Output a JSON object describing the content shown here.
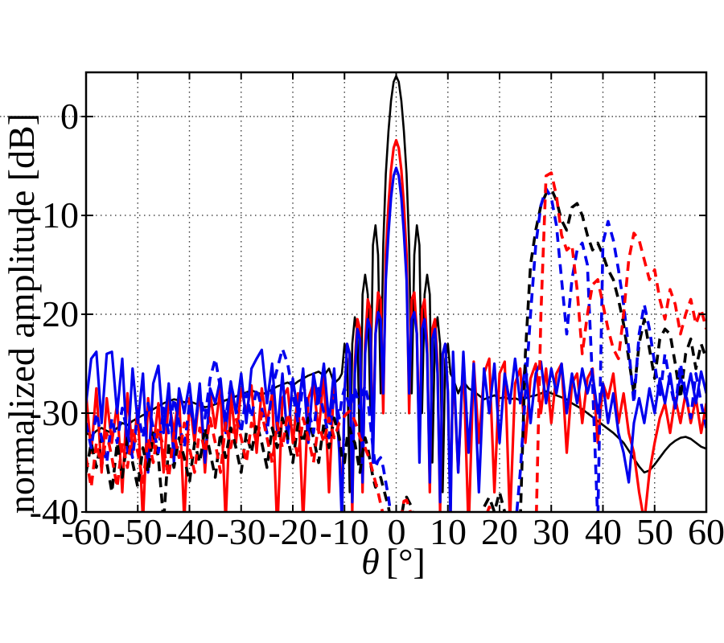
{
  "figure": {
    "kind": "matlab-style radiation pattern figure",
    "background": "#ffffff",
    "frame_color": "#000000",
    "grid_color": "#3a3a3a"
  },
  "chart_data": {
    "type": "line",
    "title": "",
    "xlabel": "θ [°]",
    "xlabel_theta": "θ",
    "xlabel_unit": "[°]",
    "ylabel": "normalized amplitude [dB]",
    "xlim": [
      -60,
      60
    ],
    "ylim": [
      -40,
      4.47
    ],
    "grid": "dotted",
    "legend_position": "none",
    "xticks": [
      -60,
      -50,
      -40,
      -30,
      -20,
      -10,
      0,
      10,
      20,
      30,
      40,
      50,
      60
    ],
    "yticks": [
      0,
      -10,
      -20,
      -30,
      -40
    ],
    "xtick_labels": [
      "-60",
      "-50",
      "-40",
      "-30",
      "-20",
      "-10",
      "0",
      "10",
      "20",
      "30",
      "40",
      "50",
      "60"
    ],
    "ytick_labels": [
      "0",
      "-10",
      "-20",
      "-30",
      "-40"
    ],
    "x": [
      -60,
      -59,
      -58,
      -57,
      -56,
      -55,
      -54,
      -53,
      -52,
      -51,
      -50,
      -49,
      -48,
      -47,
      -46,
      -45,
      -44,
      -43,
      -42,
      -41,
      -40,
      -39,
      -38,
      -37,
      -36,
      -35,
      -34,
      -33,
      -32,
      -31,
      -30,
      -29,
      -28,
      -27,
      -26,
      -25,
      -24,
      -23,
      -22,
      -21,
      -20,
      -19,
      -18,
      -17,
      -16,
      -15,
      -14,
      -13,
      -12,
      -11,
      -10.5,
      -10,
      -9.5,
      -9,
      -8.5,
      -8,
      -7.5,
      -7,
      -6.5,
      -6,
      -5.5,
      -5,
      -4.5,
      -4,
      -3.5,
      -3,
      -2.5,
      -2,
      -1.5,
      -1,
      -0.5,
      0,
      0.5,
      1,
      1.5,
      2,
      2.5,
      3,
      3.5,
      4,
      4.5,
      5,
      5.5,
      6,
      6.5,
      7,
      7.5,
      8,
      8.5,
      9,
      9.5,
      10,
      10.5,
      11,
      12,
      13,
      14,
      15,
      16,
      17,
      18,
      19,
      20,
      21,
      22,
      23,
      24,
      25,
      26,
      27,
      28,
      29,
      30,
      31,
      32,
      33,
      34,
      35,
      36,
      37,
      38,
      39,
      40,
      41,
      42,
      43,
      44,
      45,
      46,
      47,
      48,
      49,
      50,
      51,
      52,
      53,
      54,
      55,
      56,
      57,
      58,
      59,
      60
    ],
    "series": [
      {
        "name": "solid-black",
        "color": "#000000",
        "style": "solid",
        "width": 2.6,
        "values": [
          -32,
          -32.3,
          -31.8,
          -31.5,
          -31.8,
          -32,
          -31.5,
          -31,
          -31.2,
          -30.8,
          -30.5,
          -30.2,
          -30,
          -29.6,
          -29.3,
          -29,
          -28.8,
          -28.6,
          -28.7,
          -28.9,
          -28.8,
          -29,
          -29.2,
          -29.4,
          -29.3,
          -29.1,
          -28.9,
          -28.7,
          -28.5,
          -28.3,
          -28.1,
          -27.9,
          -27.7,
          -27.9,
          -28.1,
          -27.9,
          -27.6,
          -27.3,
          -27.1,
          -26.9,
          -27.2,
          -26.8,
          -26.5,
          -26.2,
          -26,
          -25.8,
          -26.2,
          -25.5,
          -27,
          -26.5,
          -26,
          -23,
          -24.5,
          -38,
          -23,
          -20.3,
          -22,
          -35,
          -18,
          -16,
          -18,
          -30,
          -13,
          -11,
          -14,
          -28,
          -13,
          -5.8,
          -1.5,
          1.6,
          3.5,
          4.1,
          3.5,
          1.6,
          -1.5,
          -5.8,
          -13,
          -28,
          -14,
          -11,
          -13,
          -30,
          -18,
          -16,
          -18,
          -35,
          -22,
          -20.3,
          -23,
          -38,
          -24.5,
          -23,
          -26,
          -26.5,
          -28,
          -26.8,
          -27.5,
          -27.8,
          -28.2,
          -28.6,
          -28.4,
          -28.2,
          -28.5,
          -28.4,
          -28.6,
          -28.5,
          -28.7,
          -28.5,
          -28.3,
          -28.2,
          -28,
          -27.8,
          -28,
          -28.2,
          -28.4,
          -28.6,
          -29,
          -29.3,
          -29.6,
          -30,
          -30.4,
          -30.8,
          -31.2,
          -31.6,
          -32,
          -32.5,
          -33,
          -33.8,
          -34.6,
          -35.4,
          -36,
          -35.8,
          -35.2,
          -34.5,
          -33.8,
          -33.2,
          -32.8,
          -32.5,
          -32.4,
          -32.6,
          -33,
          -33.4,
          -33.6
        ]
      },
      {
        "name": "solid-red",
        "color": "#ff0000",
        "style": "solid",
        "width": 3.2,
        "values": [
          -28,
          -34,
          -27.5,
          -36,
          -28.5,
          -33,
          -29,
          -38,
          -28,
          -34,
          -29.5,
          -41,
          -28.5,
          -33.5,
          -29,
          -36,
          -28.5,
          -32,
          -28,
          -41,
          -28.5,
          -33,
          -27.5,
          -36,
          -28,
          -31.5,
          -27.5,
          -41,
          -28,
          -33,
          -27.5,
          -30,
          -27.2,
          -34,
          -27.5,
          -31,
          -28,
          -42,
          -28.5,
          -27.5,
          -33,
          -28,
          -41,
          -28.5,
          -27,
          -32,
          -26,
          -38,
          -26.5,
          -33,
          -40,
          -28,
          -23,
          -24,
          -40,
          -25,
          -20.5,
          -21.5,
          -38,
          -23,
          -18.5,
          -19.5,
          -34,
          -22,
          -17.8,
          -18.5,
          -30,
          -14,
          -9,
          -5.4,
          -3.2,
          -2.4,
          -3.2,
          -5.4,
          -9,
          -14,
          -30,
          -18.5,
          -17.8,
          -22,
          -34,
          -19.5,
          -18.5,
          -23,
          -38,
          -21.5,
          -20.5,
          -25,
          -40,
          -24,
          -23,
          -28,
          -40,
          -24.8,
          -36,
          -24.5,
          -42,
          -24.8,
          -33,
          -26,
          -24.5,
          -38,
          -26,
          -24.8,
          -41,
          -27,
          -25.5,
          -33,
          -26.5,
          -25,
          -30,
          -25.5,
          -31,
          -26,
          -25,
          -34,
          -27,
          -26,
          -31,
          -26.5,
          -25.5,
          -33,
          -27,
          -28.5,
          -26,
          -31,
          -28,
          -32,
          -34,
          -38,
          -41,
          -36,
          -33,
          -30.5,
          -29,
          -32,
          -28.5,
          -31,
          -28,
          -31,
          -28.5,
          -32,
          -29
        ]
      },
      {
        "name": "solid-blue",
        "color": "#0000ee",
        "style": "solid",
        "width": 3.2,
        "values": [
          -29,
          -24.5,
          -23.8,
          -31,
          -24,
          -23.8,
          -30,
          -24.5,
          -34,
          -25.5,
          -31,
          -26,
          -36,
          -27,
          -25.2,
          -32,
          -27,
          -35,
          -27.5,
          -30,
          -27,
          -32,
          -27,
          -35,
          -27.5,
          -29,
          -26.5,
          -32,
          -26.8,
          -30,
          -26,
          -31,
          -25.5,
          -24.5,
          -23.6,
          -29,
          -25,
          -32,
          -26,
          -33,
          -26.5,
          -30,
          -25.5,
          -33,
          -26,
          -29,
          -25,
          -31,
          -25.5,
          -34,
          -41,
          -28,
          -23,
          -24,
          -39,
          -26,
          -21.5,
          -22.5,
          -37,
          -24,
          -20.5,
          -21.5,
          -35,
          -22,
          -19.8,
          -20.5,
          -28,
          -16.5,
          -11.8,
          -8.2,
          -6,
          -5.2,
          -6,
          -8.2,
          -11.8,
          -16.5,
          -28,
          -20.5,
          -19.8,
          -22,
          -35,
          -21.5,
          -20.5,
          -24,
          -37,
          -22.5,
          -21.5,
          -26,
          -39,
          -24,
          -23,
          -28,
          -41,
          -23.8,
          -36,
          -23.8,
          -34,
          -25,
          -38,
          -25.5,
          -30,
          -25,
          -33,
          -26,
          -29,
          -24.5,
          -29,
          -25,
          -31,
          -26,
          -24.8,
          -29,
          -25.5,
          -28,
          -25,
          -30,
          -26,
          -29,
          -25.5,
          -28,
          -26,
          -30,
          -27,
          -31,
          -28,
          -32,
          -34,
          -37,
          -31,
          -28.5,
          -31,
          -27.5,
          -30,
          -26.5,
          -29,
          -26,
          -29.5,
          -26.2,
          -28.5,
          -26,
          -29,
          -25.8,
          -28
        ]
      },
      {
        "name": "dashed-black",
        "color": "#000000",
        "style": "dashed",
        "width": 3.6,
        "values": [
          -36,
          -33,
          -35.5,
          -32.5,
          -35,
          -38,
          -33,
          -36.5,
          -32.5,
          -35,
          -37.5,
          -33.5,
          -36,
          -32,
          -34.5,
          -41,
          -33,
          -35.5,
          -32.5,
          -34.5,
          -37,
          -33,
          -35,
          -31.5,
          -34,
          -36.5,
          -32,
          -34.5,
          -31.5,
          -33.5,
          -36,
          -32,
          -34,
          -31,
          -33,
          -35.5,
          -31.5,
          -33.5,
          -30.5,
          -32.5,
          -35,
          -31,
          -33,
          -30.5,
          -32.5,
          -35,
          -31,
          -33.5,
          -30.5,
          -32.5,
          -34.5,
          -35,
          -32.5,
          -31.5,
          -32.5,
          -33,
          -34.5,
          -36,
          -34,
          -32.5,
          -33.5,
          -35,
          -36.5,
          -37.5,
          -36.8,
          -36.5,
          -37.5,
          -38.5,
          -39.5,
          -41,
          -42,
          -43,
          -42,
          -40.5,
          -39,
          -38.5,
          -39,
          -39.5,
          -41,
          -42,
          -43,
          -44,
          -43,
          -41.5,
          -42.5,
          -43.5,
          -44.5,
          -45,
          -44,
          -42,
          -43,
          -44,
          -42.5,
          -41,
          -43,
          -45,
          -42,
          -44,
          -41,
          -39.5,
          -38.5,
          -40,
          -38,
          -40,
          -43,
          -45,
          -41,
          -24,
          -15,
          -11.5,
          -9,
          -7.8,
          -7.3,
          -8.5,
          -10.5,
          -11.5,
          -9.2,
          -8.8,
          -10,
          -12,
          -13.5,
          -12.8,
          -14,
          -15.5,
          -16.5,
          -18.5,
          -21,
          -24.5,
          -28,
          -23,
          -20.5,
          -23.5,
          -26.5,
          -22.5,
          -21.5,
          -22,
          -25,
          -28.5,
          -24,
          -22.5,
          -25.5,
          -23,
          -24.5
        ]
      },
      {
        "name": "dashed-blue",
        "color": "#0000ee",
        "style": "dashed",
        "width": 3.6,
        "values": [
          -31,
          -33.5,
          -30,
          -32.5,
          -35,
          -30.5,
          -33,
          -29.5,
          -32,
          -34.5,
          -30,
          -32.5,
          -29,
          -31.5,
          -34,
          -29.5,
          -32,
          -28.5,
          -31,
          -33.5,
          -29,
          -31.5,
          -28,
          -30.5,
          -26.5,
          -24.5,
          -27.5,
          -30.5,
          -27,
          -29.5,
          -32,
          -28,
          -30.5,
          -27.5,
          -29.5,
          -32,
          -27.5,
          -25.5,
          -23.5,
          -25,
          -28,
          -31,
          -27,
          -29.5,
          -32,
          -27.5,
          -30,
          -32.5,
          -28,
          -30.5,
          -28.5,
          -27.5,
          -28.5,
          -29.5,
          -28.5,
          -27.5,
          -28.5,
          -29.5,
          -28,
          -27.2,
          -28.5,
          -31,
          -33.5,
          -35.5,
          -34.8,
          -34.5,
          -35.5,
          -37,
          -38.5,
          -40.5,
          -42,
          -43.5,
          -42.5,
          -42,
          -43,
          -44,
          -43.5,
          -43,
          -44,
          -45,
          -44,
          -43.5,
          -44.5,
          -45,
          -44.5,
          -44,
          -44.5,
          -45,
          -44,
          -43,
          -44,
          -45,
          -44,
          -44,
          -45,
          -43.5,
          -45,
          -44,
          -45,
          -43,
          -45,
          -43.5,
          -44,
          -43,
          -44,
          -42,
          -36,
          -28,
          -20,
          -13,
          -9,
          -7.3,
          -8.2,
          -11,
          -16.5,
          -22,
          -16.5,
          -13.5,
          -12.8,
          -15,
          -27,
          -41,
          -12.8,
          -10.6,
          -12.5,
          -15.5,
          -19,
          -23.5,
          -29,
          -22,
          -19,
          -21.5,
          -25,
          -28.5,
          -24,
          -27,
          -29.5,
          -25,
          -28,
          -30.5,
          -26,
          -29,
          -31.5
        ]
      },
      {
        "name": "dashed-red",
        "color": "#ff0000",
        "style": "dashed",
        "width": 3.6,
        "values": [
          -34.5,
          -37.5,
          -33,
          -35.5,
          -32,
          -34.5,
          -37.5,
          -33,
          -35.5,
          -31.5,
          -34,
          -37,
          -32.5,
          -35,
          -31.5,
          -33.5,
          -36.5,
          -32,
          -34.5,
          -31,
          -33.5,
          -36,
          -31.5,
          -34,
          -30.5,
          -33,
          -36,
          -31,
          -33.5,
          -30.5,
          -32.5,
          -35,
          -31,
          -33,
          -30,
          -32.5,
          -35,
          -31,
          -33.5,
          -30,
          -32,
          -34.5,
          -30.5,
          -32.5,
          -35,
          -31,
          -33,
          -30.5,
          -32.5,
          -31,
          -30.8,
          -30.3,
          -30,
          -29.8,
          -30.2,
          -30.8,
          -31.5,
          -32.5,
          -33,
          -33.5,
          -34.2,
          -35,
          -36,
          -37,
          -38,
          -39.2,
          -40.3,
          -41.5,
          -42.5,
          -43.5,
          -44.2,
          -45,
          -43,
          -40.5,
          -38.9,
          -38.8,
          -39.5,
          -40.5,
          -41.5,
          -43,
          -44,
          -45,
          -44.5,
          -44,
          -44.5,
          -45,
          -44.5,
          -43.5,
          -44.5,
          -45,
          -44.5,
          -44,
          -44.5,
          -45,
          -43,
          -45,
          -44,
          -45,
          -43,
          -41,
          -39.5,
          -41,
          -40,
          -42,
          -44,
          -45,
          -43,
          -45,
          -44,
          -43,
          -20,
          -6,
          -5.7,
          -8,
          -12,
          -13.5,
          -13,
          -17.5,
          -24,
          -20,
          -17,
          -16.5,
          -19,
          -21.5,
          -23.5,
          -24.5,
          -20,
          -14.5,
          -11.8,
          -12.5,
          -14.5,
          -16.5,
          -15.5,
          -18.5,
          -20.5,
          -17.5,
          -19,
          -22,
          -20,
          -18.5,
          -21,
          -19.5,
          -21.5
        ]
      }
    ]
  }
}
